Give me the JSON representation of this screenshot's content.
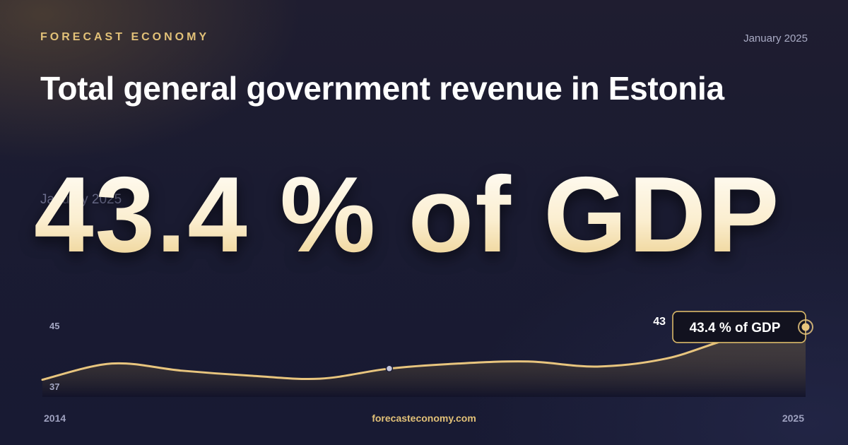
{
  "brand": "FORECAST ECONOMY",
  "date": "January 2025",
  "title": "Total general government revenue in Estonia",
  "headline_value": "43.4 % of GDP",
  "footer": {
    "site": "forecasteconomy.com",
    "start_year": "2014",
    "end_year": "2025"
  },
  "colors": {
    "accent": "#e2c178",
    "line": "#e8c57e",
    "background": "#1b1c33"
  },
  "chart_data": {
    "type": "area",
    "x": [
      2014,
      2015,
      2016,
      2017,
      2018,
      2019,
      2020,
      2021,
      2022,
      2023,
      2024,
      2025
    ],
    "values": [
      38.2,
      39.8,
      39.1,
      38.6,
      38.3,
      39.3,
      39.8,
      40.0,
      39.5,
      40.3,
      42.4,
      43.4
    ],
    "y_ticks": [
      "45",
      "37"
    ],
    "ylim": [
      36.5,
      45
    ],
    "x_tick_labels": [
      "2014",
      "2025"
    ],
    "current_value_label": "43",
    "callout": "43.4 % of GDP",
    "marked_point_index": 5,
    "grid": false,
    "legend": "none"
  }
}
